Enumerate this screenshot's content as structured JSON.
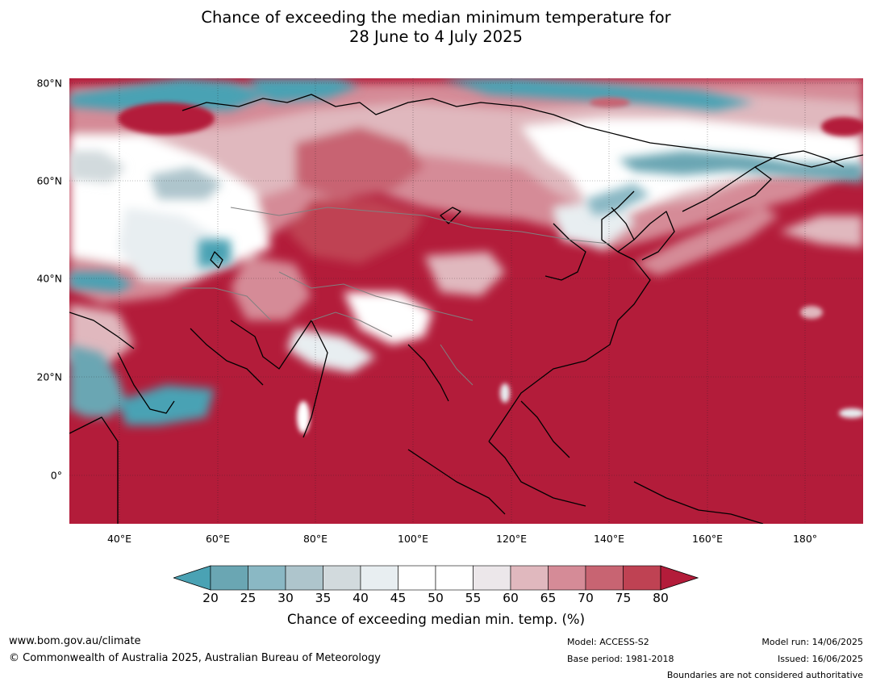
{
  "title_line1": "Chance of exceeding the median minimum temperature for",
  "title_line2": "28 June to 4 July 2025",
  "latitude_labels": [
    "80°N",
    "60°N",
    "40°N",
    "20°N",
    "0°"
  ],
  "longitude_labels": [
    "40°E",
    "60°E",
    "80°E",
    "100°E",
    "120°E",
    "140°E",
    "160°E",
    "180°"
  ],
  "colorbar": {
    "ticks": [
      "20",
      "25",
      "30",
      "35",
      "40",
      "45",
      "50",
      "55",
      "60",
      "65",
      "70",
      "75",
      "80"
    ],
    "colors": [
      "#6aa6b3",
      "#8ab8c4",
      "#aec5cc",
      "#d2dadd",
      "#e8eef1",
      "#ffffff",
      "#ffffff",
      "#ece7ea",
      "#e0b8be",
      "#d58b97",
      "#c86472",
      "#bf4253"
    ],
    "under_color": "#4aa2b4",
    "over_color": "#b31c3a",
    "label": "Chance of exceeding median min. temp. (%)"
  },
  "colors": {
    "high": "#b31c3a",
    "low": "#4aa2b4",
    "mid": "#ffffff"
  },
  "footer": {
    "website": "www.bom.gov.au/climate",
    "copyright": "© Commonwealth of Australia 2025, Australian Bureau of Meteorology",
    "model": "Model: ACCESS-S2",
    "base_period": "Base period: 1981-2018",
    "model_run": "Model run: 14/06/2025",
    "issued": "Issued: 16/06/2025",
    "disclaimer": "Boundaries are not considered authoritative"
  }
}
